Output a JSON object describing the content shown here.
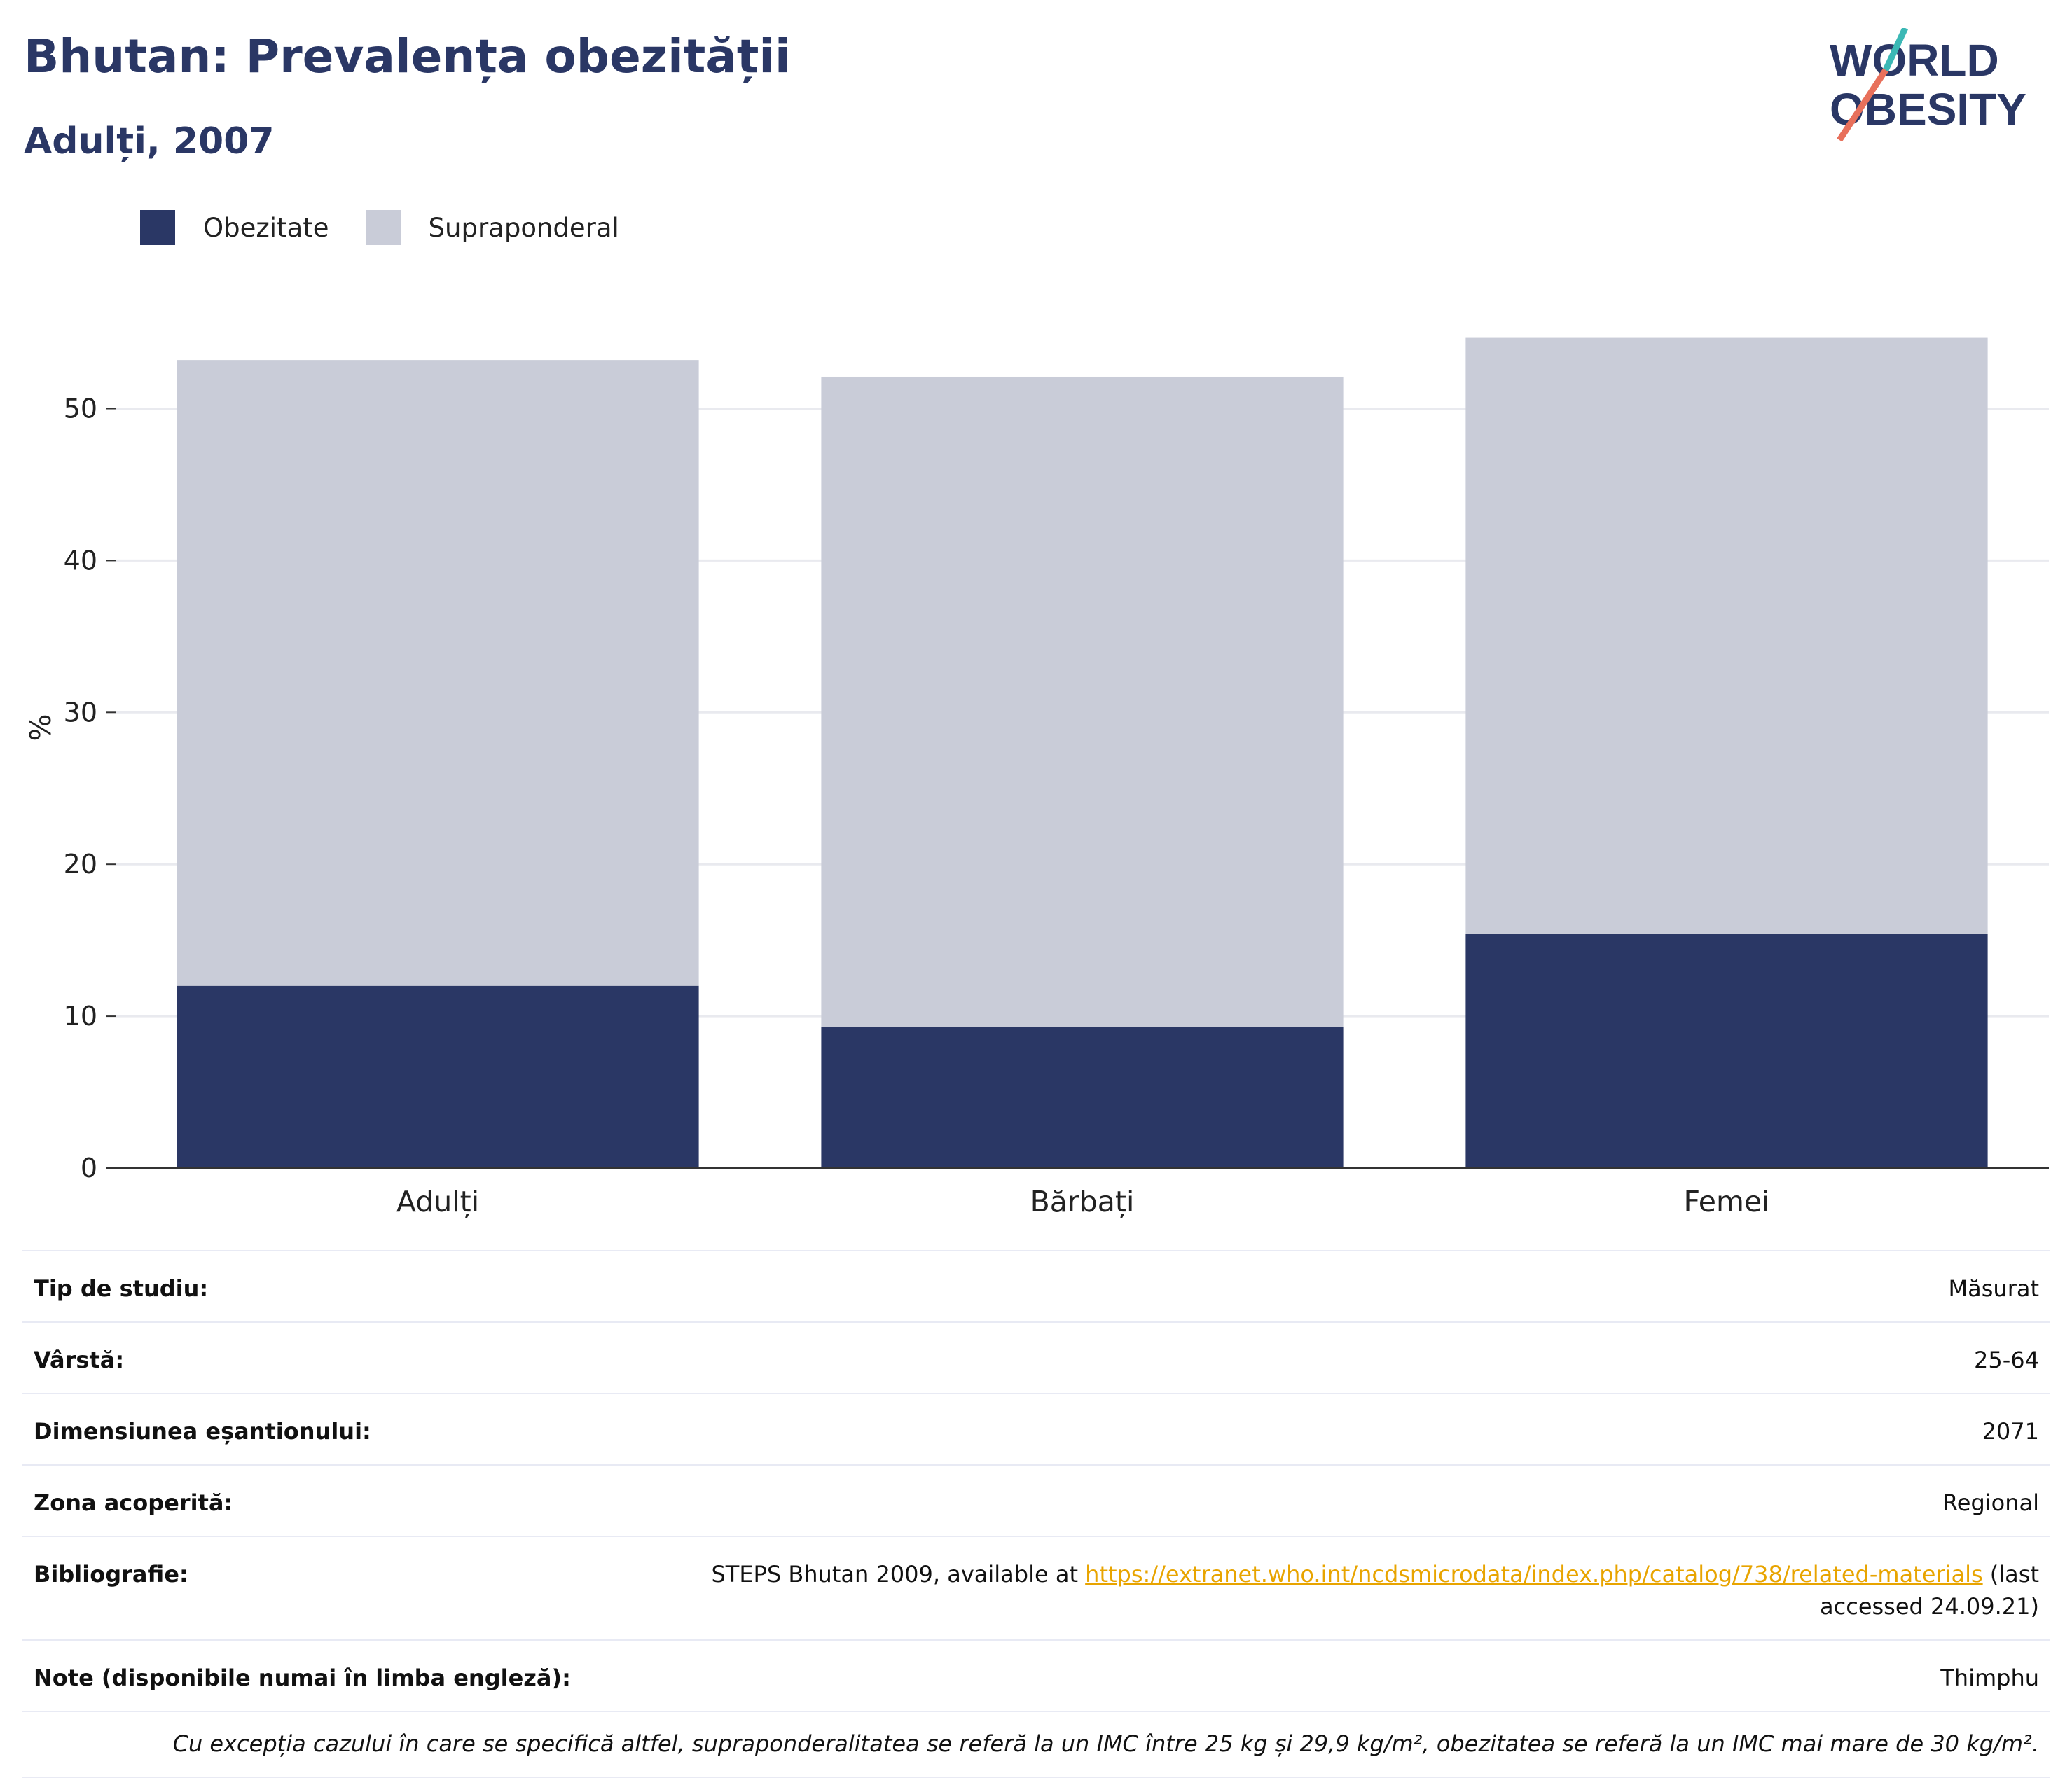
{
  "header": {
    "title": "Bhutan: Prevalența obezității",
    "subtitle": "Adulți, 2007"
  },
  "logo": {
    "line1": "WORLD",
    "line2": "OBESITY",
    "colors": {
      "text": "#2a3765",
      "accent_teal": "#3bb8b5",
      "accent_coral": "#e8705b"
    }
  },
  "colors": {
    "obezitate": "#2a3765",
    "supraponderal": "#c9ccd8",
    "grid": "#e9eaef",
    "axis": "#333333"
  },
  "chart_data": {
    "type": "bar",
    "stacked": true,
    "categories": [
      "Adulți",
      "Bărbați",
      "Femei"
    ],
    "series": [
      {
        "name": "Obezitate",
        "values": [
          12.0,
          9.3,
          15.4
        ]
      },
      {
        "name": "Supraponderal",
        "values": [
          41.2,
          42.8,
          39.3
        ]
      }
    ],
    "totals": [
      53.2,
      52.1,
      54.7
    ],
    "ylabel": "%",
    "ylim": [
      0,
      58
    ],
    "yticks": [
      0,
      10,
      20,
      30,
      40,
      50
    ],
    "legend_placement": "top-left",
    "grid": true
  },
  "info": {
    "rows": [
      {
        "key": "Tip de studiu:",
        "value": "Măsurat"
      },
      {
        "key": "Vârstă:",
        "value": "25-64"
      },
      {
        "key": "Dimensiunea eșantionului:",
        "value": "2071"
      },
      {
        "key": "Zona acoperită:",
        "value": "Regional"
      }
    ],
    "bibliography": {
      "key": "Bibliografie:",
      "prefix": "STEPS Bhutan 2009, available at",
      "link": "https://extranet.who.int/ncdsmicrodata/index.php/catalog/738/related-materials",
      "suffix": "(last accessed 24.09.21)"
    },
    "notes": {
      "key": "Note (disponibile numai în limba engleză):",
      "value": "Thimphu"
    },
    "footnote": "Cu excepția cazului în care se specifică altfel, supraponderalitatea se referă la un IMC între 25 kg și 29,9 kg/m², obezitatea se referă la un IMC mai mare de 30 kg/m²."
  }
}
